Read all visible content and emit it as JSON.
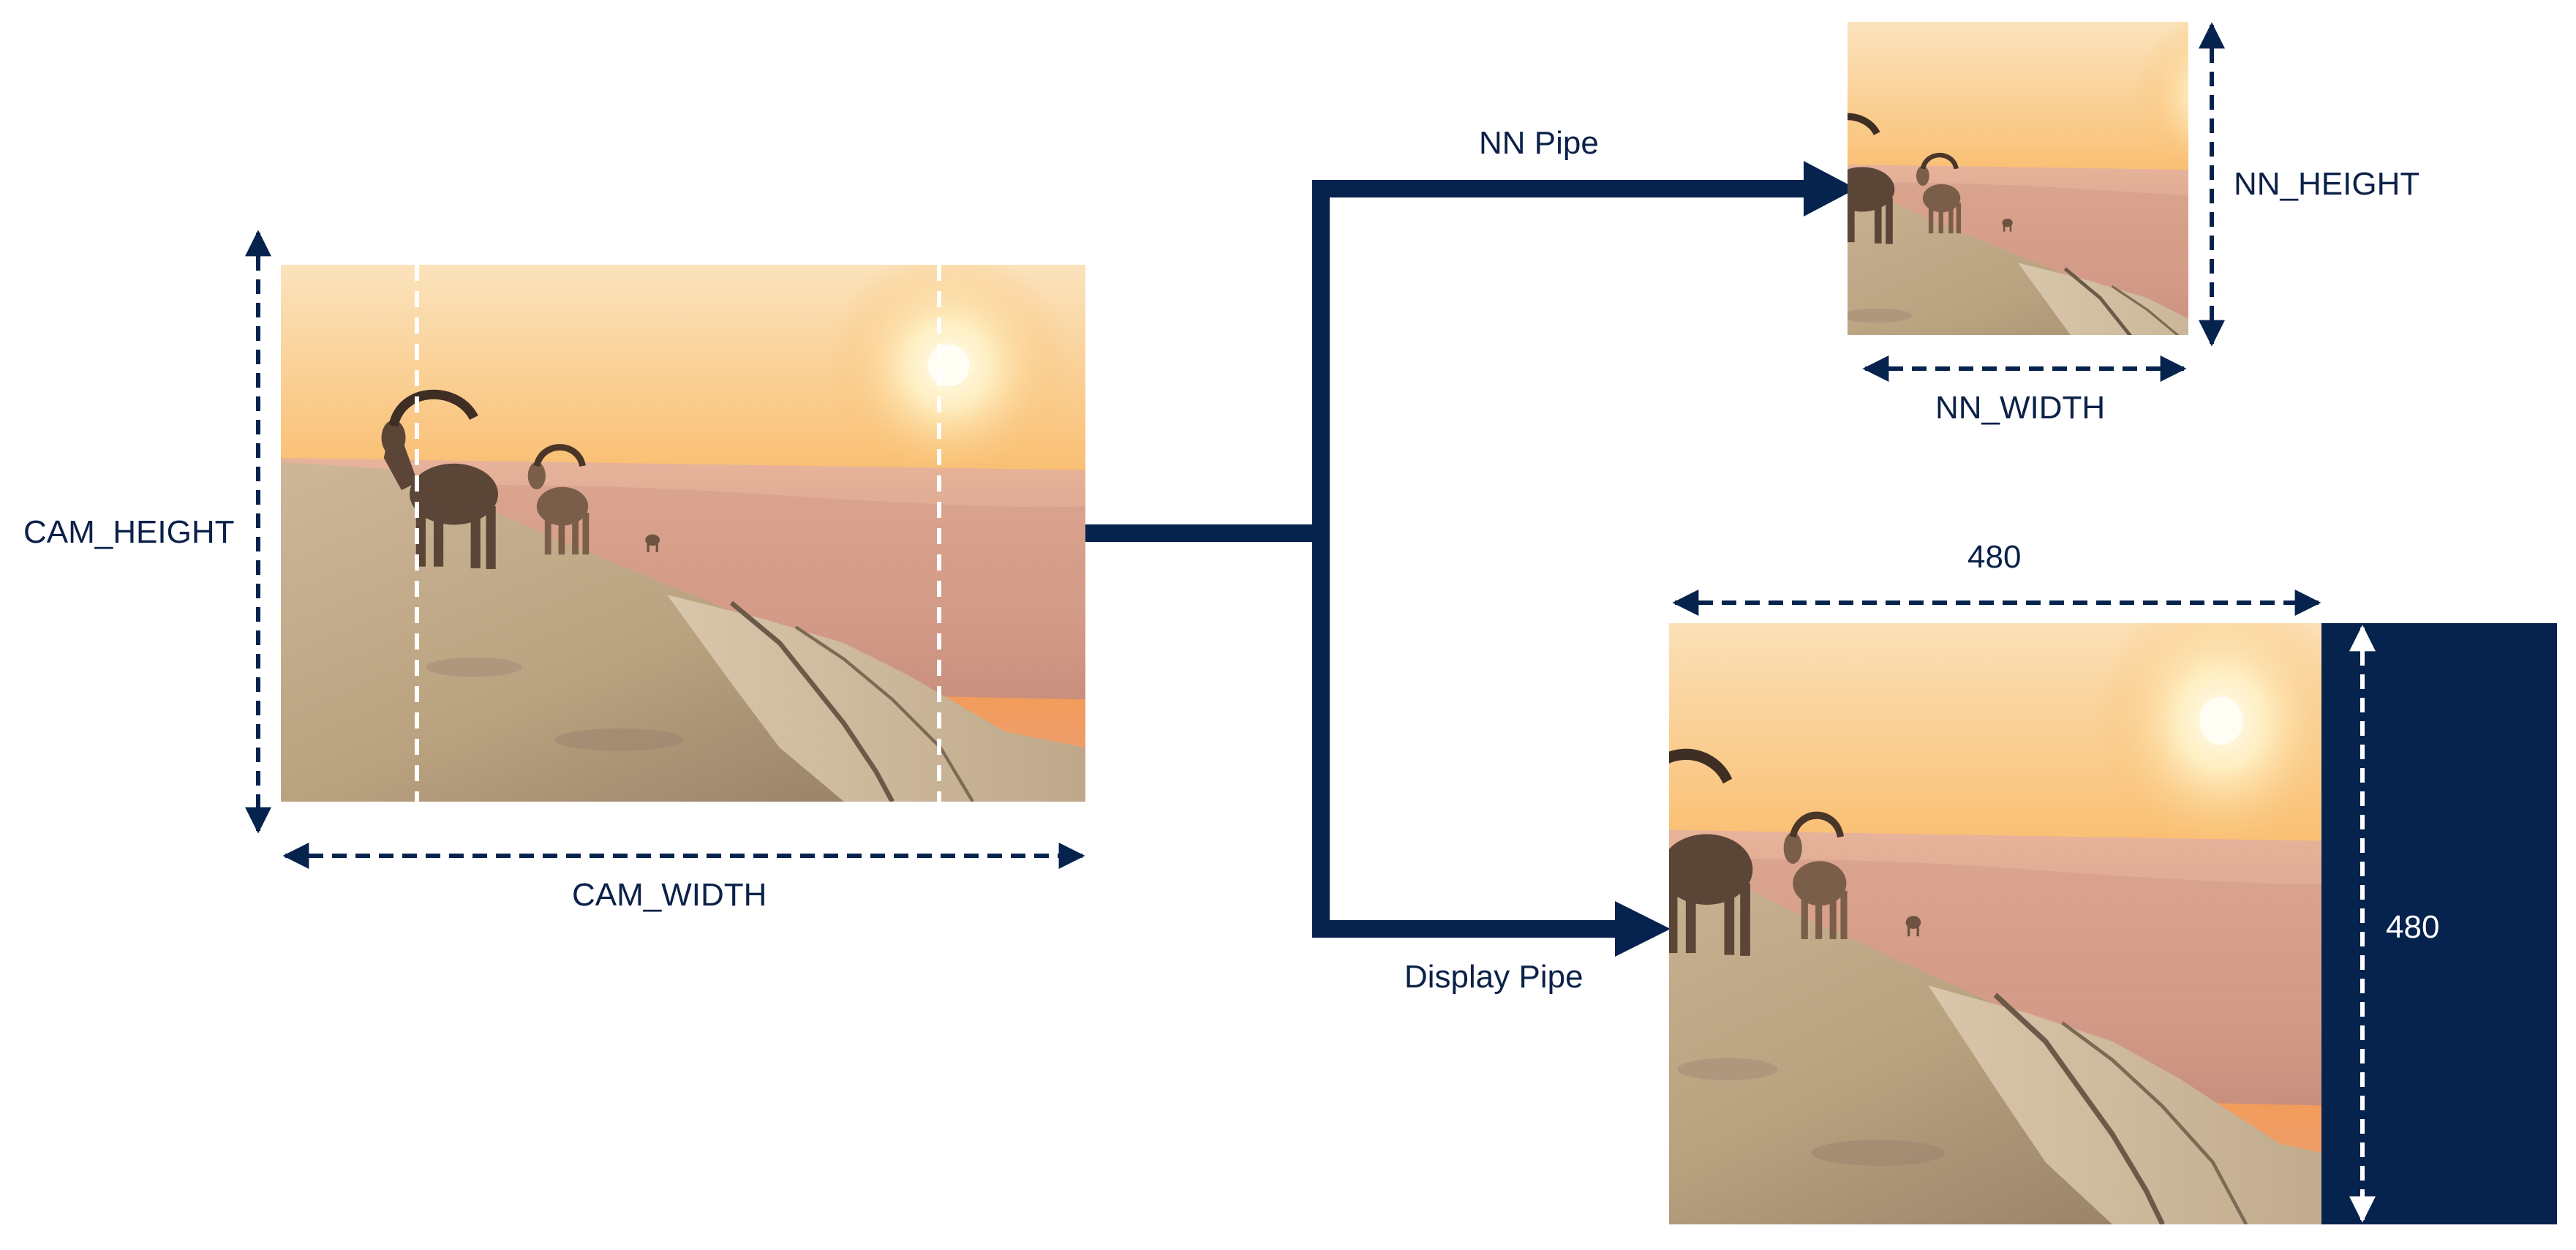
{
  "colors": {
    "navy": "#06234d",
    "text": "#0b2149",
    "white": "#ffffff",
    "sky_top": "#fbe0b6",
    "sky_mid": "#f8b660",
    "sky_low": "#f59a52",
    "haze": "#e2a98b",
    "ground_light": "#d7c3a4",
    "ground_dark": "#7f6a55",
    "ibex": "#5a4537"
  },
  "camera": {
    "width_label": "CAM_WIDTH",
    "height_label": "CAM_HEIGHT"
  },
  "pipes": {
    "nn_label": "NN Pipe",
    "display_label": "Display Pipe"
  },
  "nn": {
    "width_label": "NN_WIDTH",
    "height_label": "NN_HEIGHT"
  },
  "display": {
    "width_label": "480",
    "height_label": "480"
  }
}
